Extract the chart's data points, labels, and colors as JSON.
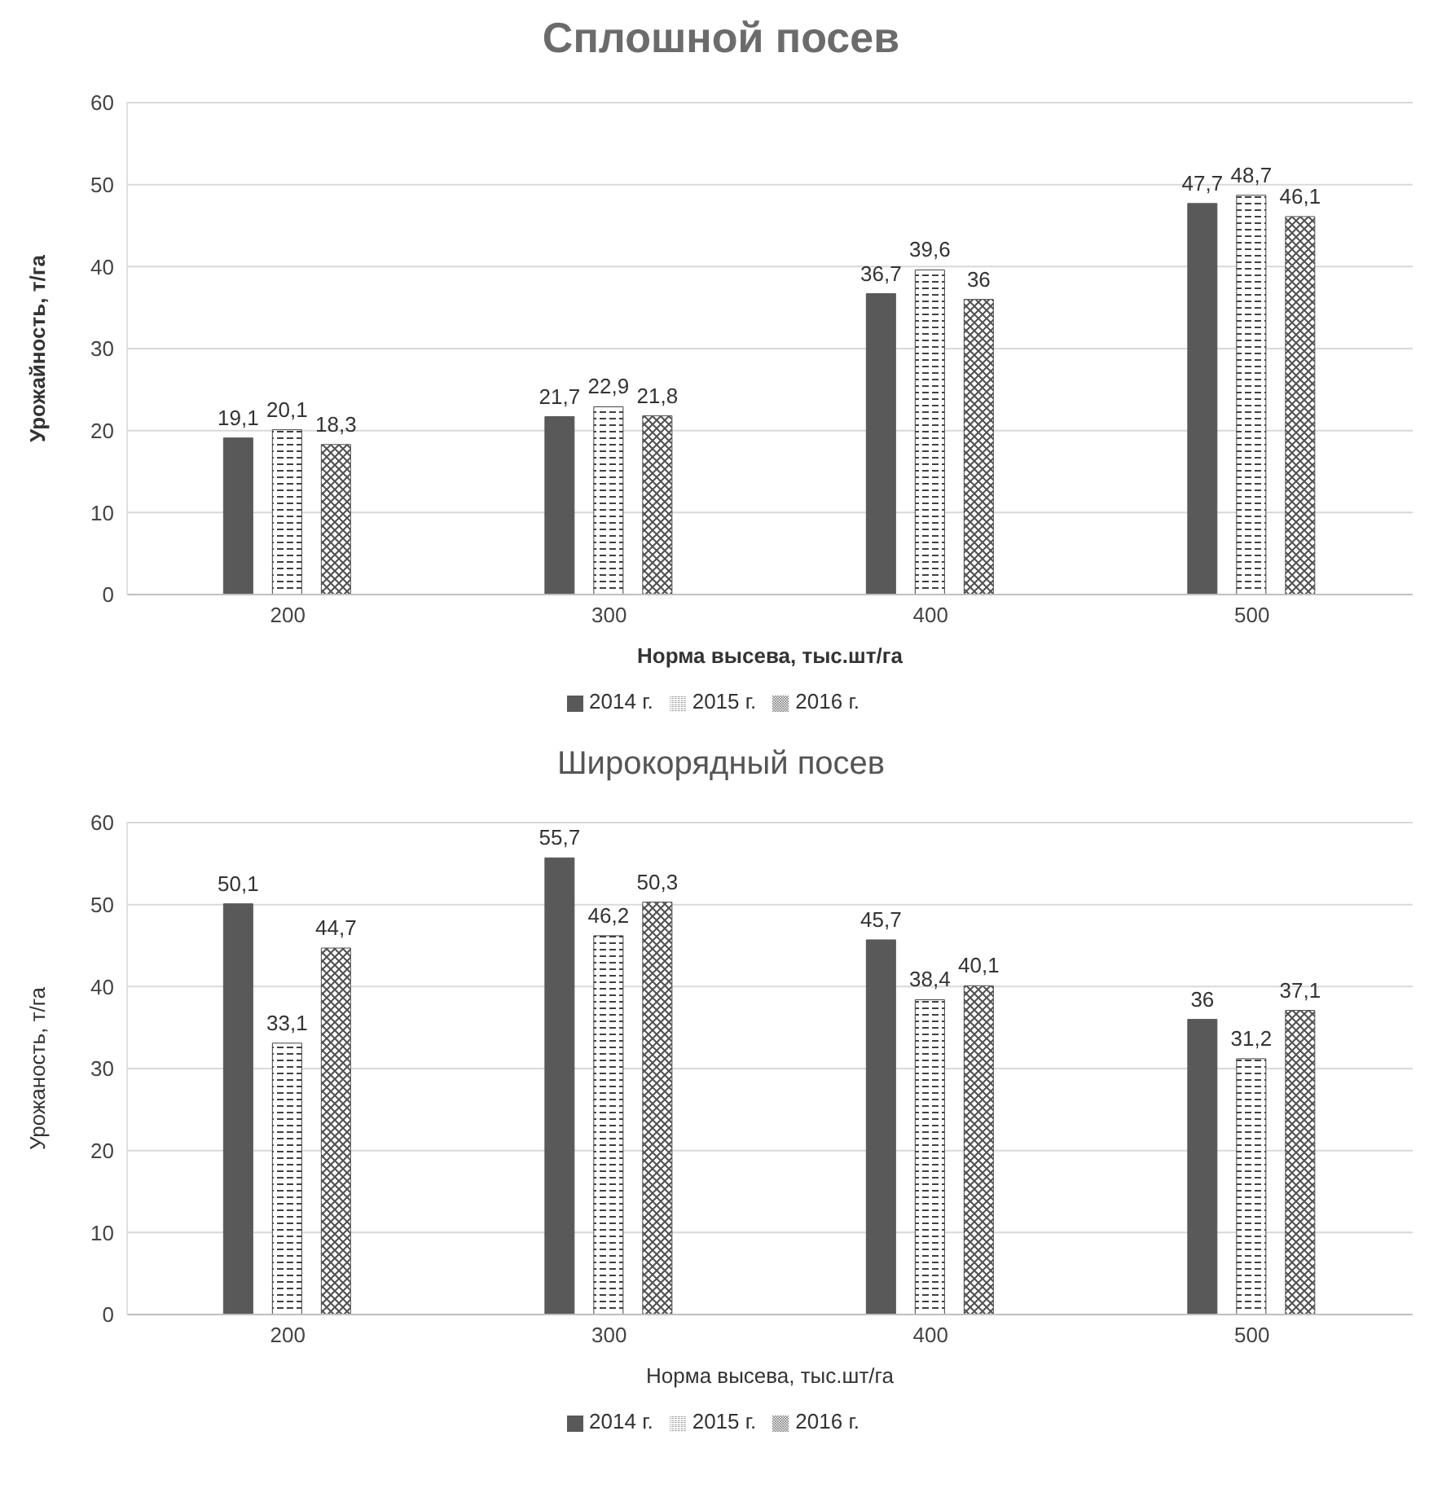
{
  "chart_data": [
    {
      "type": "bar",
      "title": "Сплошной посев",
      "xlabel": "Норма высева, тыс.шт/га",
      "ylabel": "Урожайность, т/га",
      "categories": [
        "200",
        "300",
        "400",
        "500"
      ],
      "series": [
        {
          "name": "2014 г.",
          "color": "#595959",
          "values": [
            19.1,
            21.7,
            36.7,
            47.7
          ],
          "value_labels": [
            "19,1",
            "21,7",
            "36,7",
            "47,7"
          ]
        },
        {
          "name": "2015 г.",
          "color": "#404040",
          "values": [
            20.1,
            22.9,
            39.6,
            48.7
          ],
          "value_labels": [
            "20,1",
            "22,9",
            "39,6",
            "48,7"
          ]
        },
        {
          "name": "2016 г.",
          "color": "#505050",
          "values": [
            18.3,
            21.8,
            36,
            46.1
          ],
          "value_labels": [
            "18,3",
            "21,8",
            "36",
            "46,1"
          ]
        }
      ],
      "ylim": [
        0,
        60
      ],
      "yticks": [
        0,
        10,
        20,
        30,
        40,
        50,
        60
      ],
      "grid": "y",
      "legend": "bottom"
    },
    {
      "type": "bar",
      "title": "Широкорядный посев",
      "xlabel": "Норма высева, тыс.шт/га",
      "ylabel": "Урожаность, т/га",
      "categories": [
        "200",
        "300",
        "400",
        "500"
      ],
      "series": [
        {
          "name": "2014 г.",
          "color": "#595959",
          "values": [
            50.1,
            55.7,
            45.7,
            36
          ],
          "value_labels": [
            "50,1",
            "55,7",
            "45,7",
            "36"
          ]
        },
        {
          "name": "2015 г.",
          "color": "#404040",
          "values": [
            33.1,
            46.2,
            38.4,
            31.2
          ],
          "value_labels": [
            "33,1",
            "46,2",
            "38,4",
            "31,2"
          ]
        },
        {
          "name": "2016 г.",
          "color": "#505050",
          "values": [
            44.7,
            50.3,
            40.1,
            37.1
          ],
          "value_labels": [
            "44,7",
            "50,3",
            "40,1",
            "37,1"
          ]
        }
      ],
      "ylim": [
        0,
        60
      ],
      "yticks": [
        0,
        10,
        20,
        30,
        40,
        50,
        60
      ],
      "grid": "y",
      "legend": "bottom"
    }
  ]
}
